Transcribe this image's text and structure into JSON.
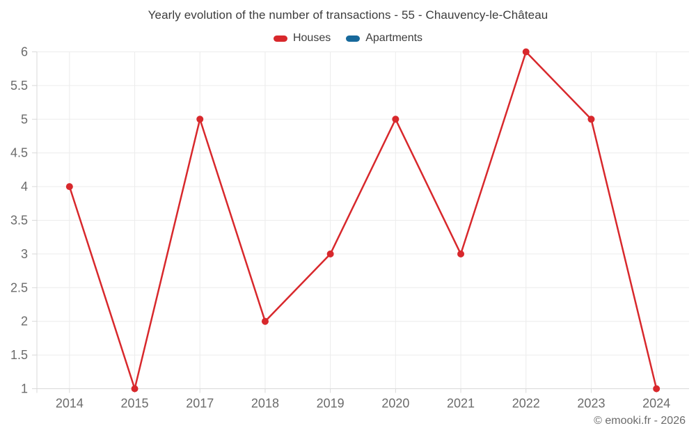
{
  "title": "Yearly evolution of the number of transactions - 55 - Chauvency-le-Château",
  "copyright": "© emooki.fr - 2026",
  "chart_data": {
    "type": "line",
    "title": "Yearly evolution of the number of transactions - 55 - Chauvency-le-Château",
    "xlabel": "",
    "ylabel": "",
    "categories": [
      "2014",
      "2015",
      "2017",
      "2018",
      "2019",
      "2020",
      "2021",
      "2022",
      "2023",
      "2024"
    ],
    "series": [
      {
        "name": "Houses",
        "color": "#d8282c",
        "values": [
          4,
          1,
          5,
          2,
          3,
          5,
          3,
          6,
          5,
          1
        ]
      },
      {
        "name": "Apartments",
        "color": "#17699b",
        "values": []
      }
    ],
    "ylim": [
      1,
      6
    ],
    "yticks": [
      "1",
      "1.5",
      "2",
      "2.5",
      "3",
      "3.5",
      "4",
      "4.5",
      "5",
      "5.5",
      "6"
    ],
    "grid": true,
    "legend_position": "top",
    "marker": "circle"
  }
}
